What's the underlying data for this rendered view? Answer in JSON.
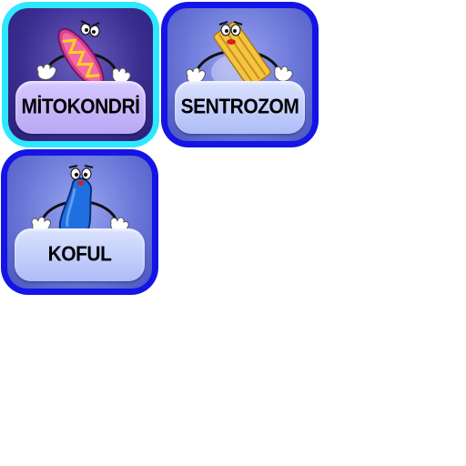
{
  "tiles": [
    {
      "label": "MİTOKONDRİ",
      "character": "mitochondrion-character",
      "border_color": "#2de8ff"
    },
    {
      "label": "SENTROZOM",
      "character": "centrosome-character",
      "border_color": "#1414e6"
    },
    {
      "label": "KOFUL",
      "character": "vacuole-character",
      "border_color": "#1414e6"
    }
  ]
}
